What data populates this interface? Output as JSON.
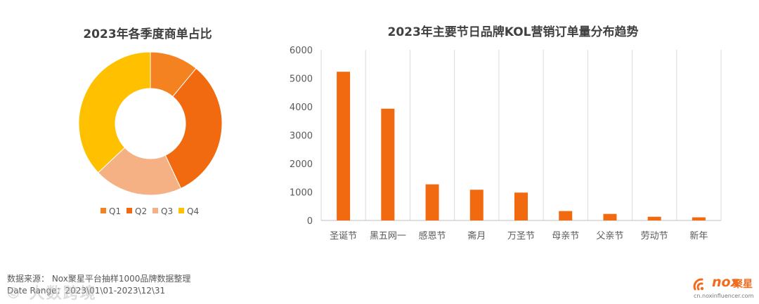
{
  "chart_data": [
    {
      "type": "pie",
      "title": "2023年各季度商单占比",
      "categories": [
        "Q1",
        "Q2",
        "Q3",
        "Q4"
      ],
      "values": [
        11,
        32,
        20,
        37
      ],
      "colors": [
        "#f58220",
        "#f26a0f",
        "#f5b183",
        "#ffc000"
      ],
      "donut": true,
      "legend": "bottom"
    },
    {
      "type": "bar",
      "title": "2023年主要节日品牌KOL营销订单量分布趋势",
      "categories": [
        "圣诞节",
        "黑五网一",
        "感恩节",
        "斋月",
        "万圣节",
        "母亲节",
        "父亲节",
        "劳动节",
        "新年"
      ],
      "values": [
        5230,
        3930,
        1270,
        1080,
        980,
        330,
        230,
        130,
        110
      ],
      "ylim": [
        0,
        6000
      ],
      "yticks": [
        0,
        1000,
        2000,
        3000,
        4000,
        5000,
        6000
      ],
      "color": "#f26a0f",
      "grid": "vertical-category-separators",
      "xlabel": "",
      "ylabel": ""
    }
  ],
  "footer": {
    "source": "数据来源： Nox聚星平台抽样1000品牌数据整理",
    "date_range": "Date Range：2023\\01\\01-2023\\12\\31"
  },
  "watermark": "© 大数跨境",
  "logo": {
    "name": "nox",
    "cn": "聚星",
    "url": "cn.noxinfluencer.com",
    "color": "#f26b1d"
  }
}
